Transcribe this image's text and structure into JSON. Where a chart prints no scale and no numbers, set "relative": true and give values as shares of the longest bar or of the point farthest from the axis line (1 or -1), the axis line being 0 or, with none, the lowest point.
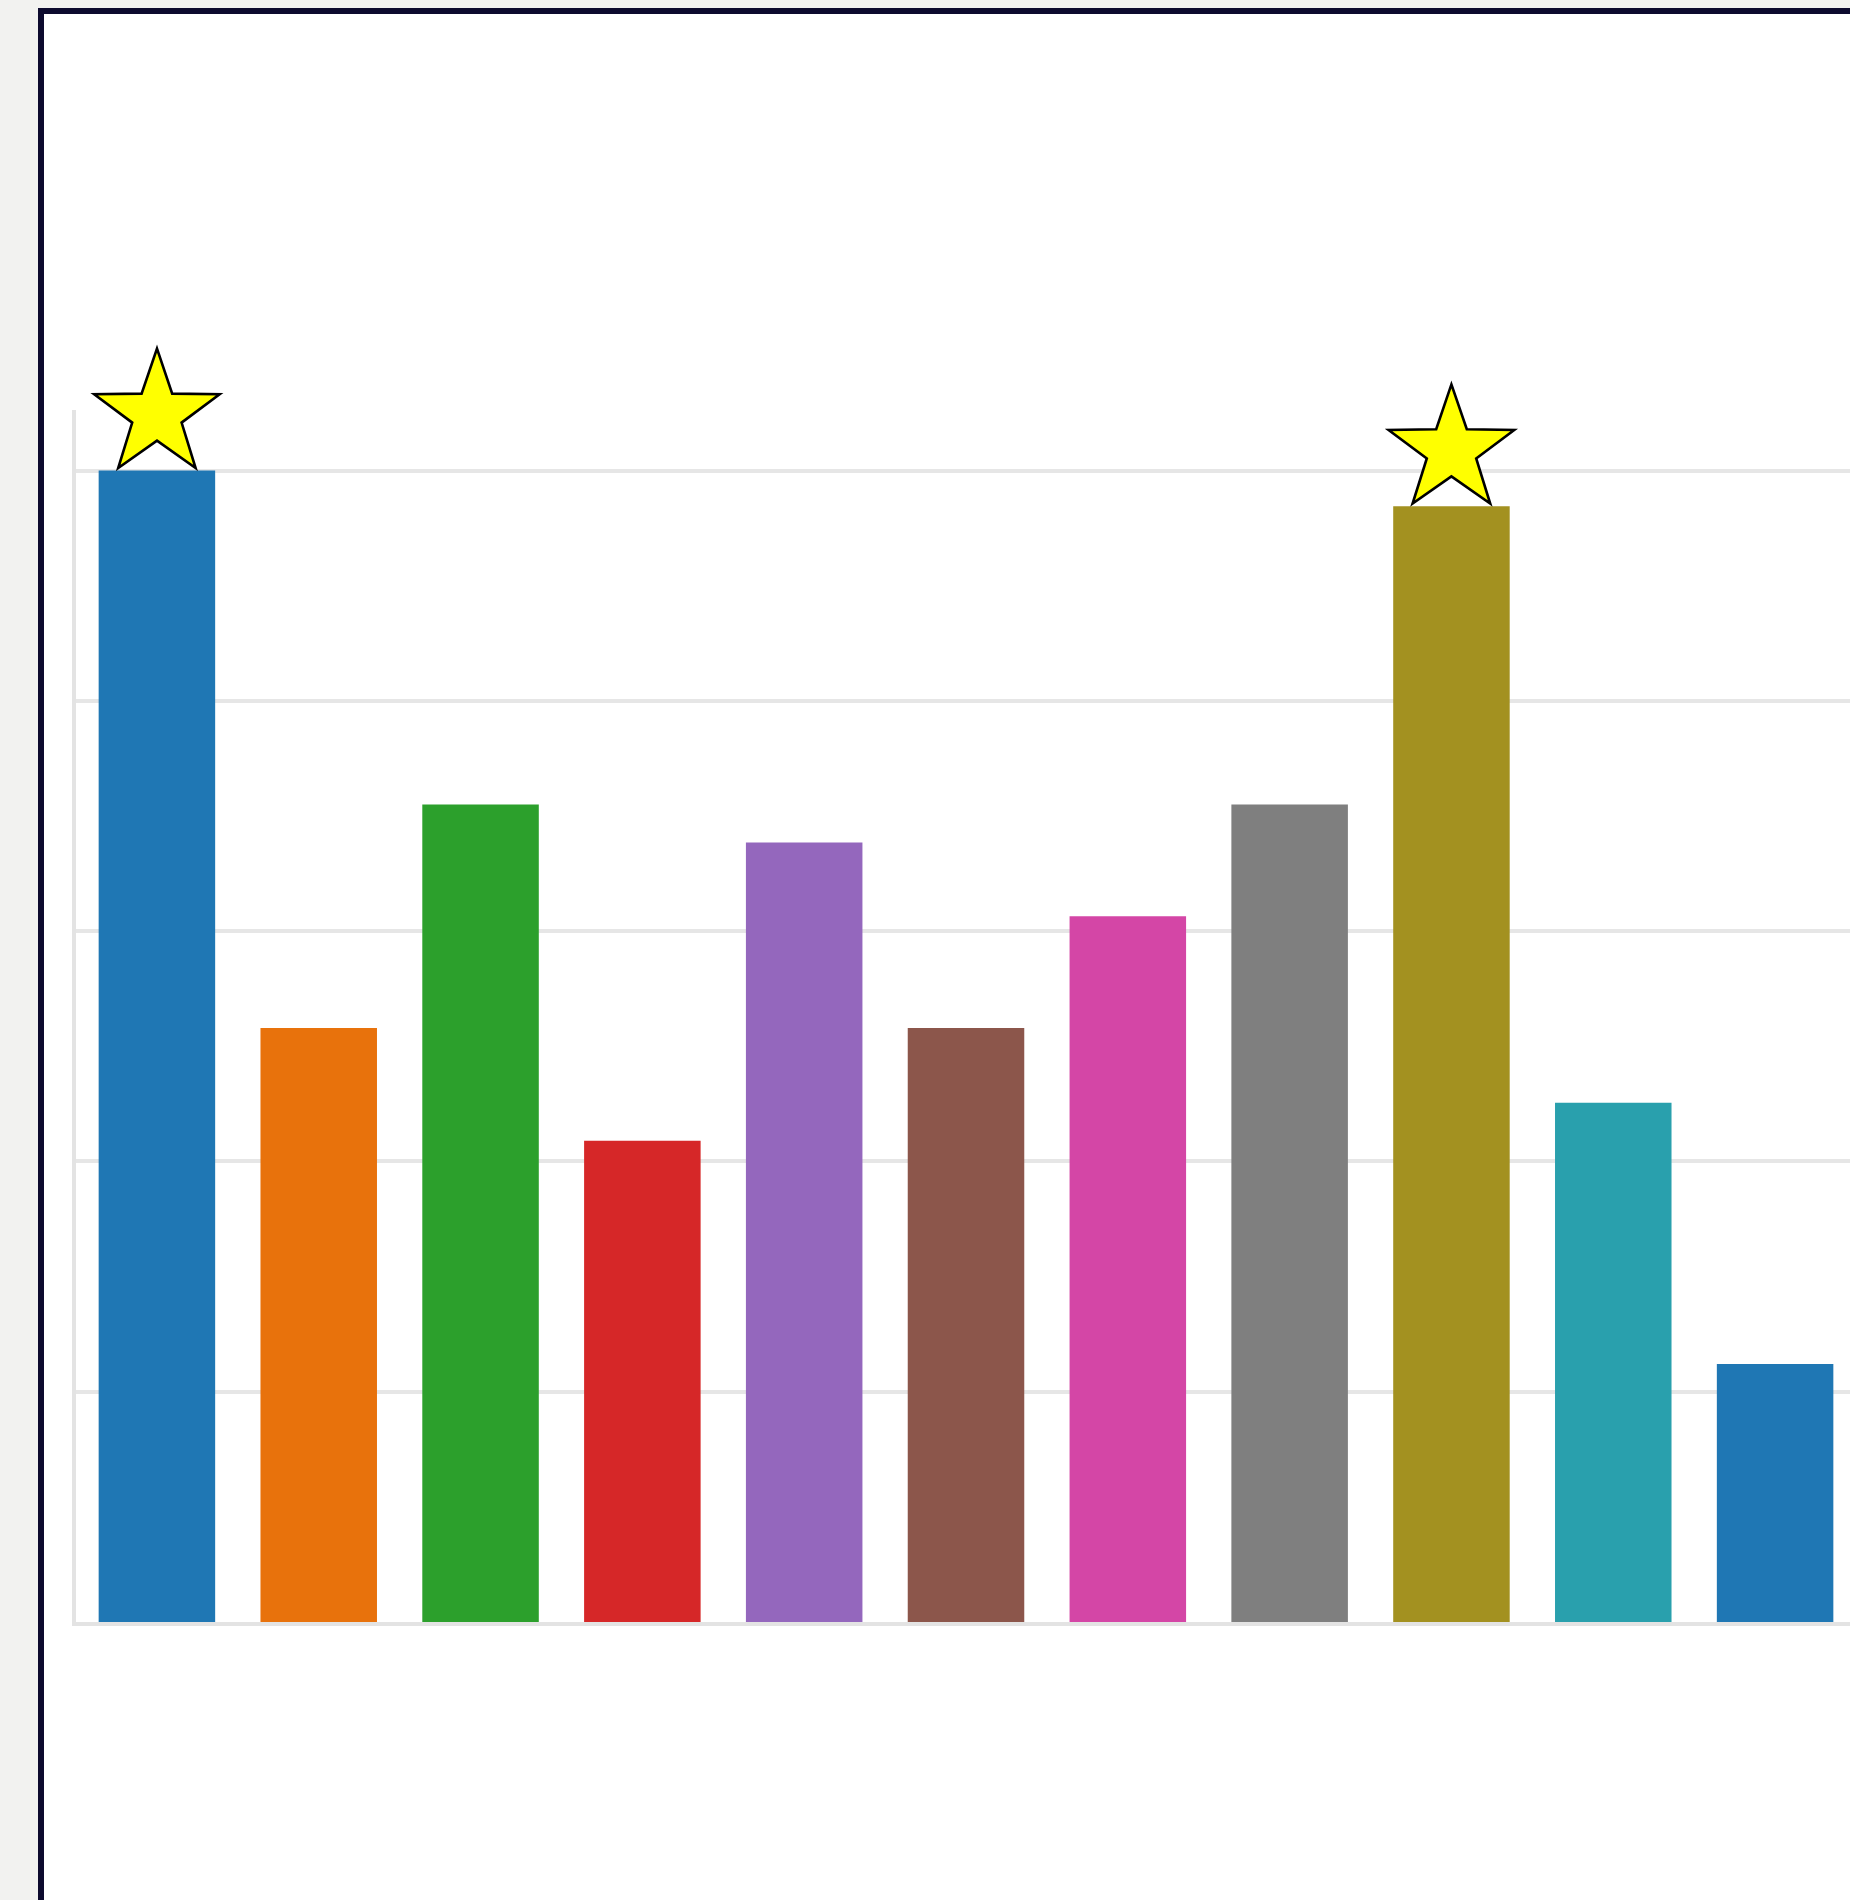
{
  "chart_data": {
    "type": "bar",
    "relative": true,
    "categories": [
      null,
      null,
      null,
      null,
      null,
      null,
      null,
      null,
      null,
      null,
      null
    ],
    "series": [
      {
        "colors": [
          "#1f77b4",
          "#e8720c",
          "#2ca02c",
          "#d62728",
          "#9467bd",
          "#8c564b",
          "#d446a6",
          "#7f7f7f",
          "#a39120",
          "#29a0ad",
          "#1f77b4"
        ],
        "values": [
          1,
          0.516,
          0.71,
          0.418,
          0.677,
          0.516,
          0.613,
          0.71,
          0.969,
          0.451,
          0.224
        ]
      }
    ],
    "grid": "y",
    "legend": false
  }
}
